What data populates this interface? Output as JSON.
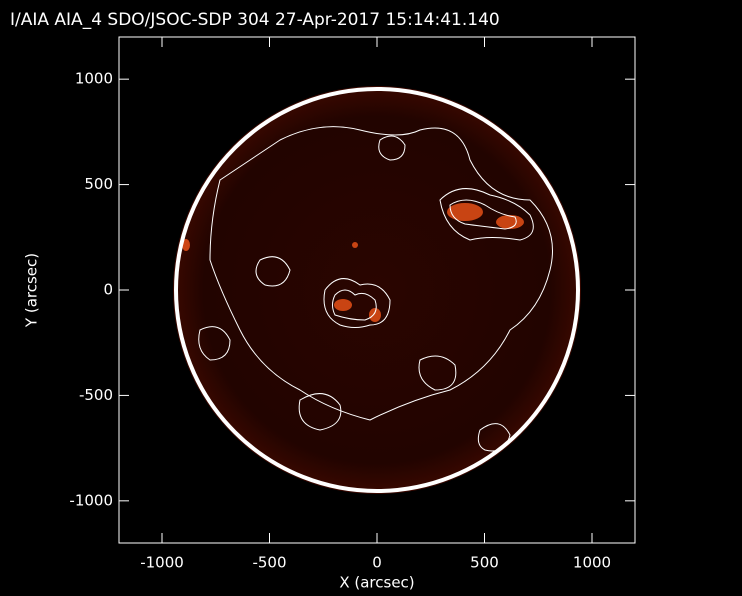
{
  "chart_data": {
    "type": "image",
    "title": "I/AIA AIA_4 SDO/JSOC-SDP 304 27-Apr-2017 15:14:41.140",
    "x_label": "X (arcsec)",
    "y_label": "Y (arcsec)",
    "xlim": [
      -1200,
      1200
    ],
    "ylim": [
      -1200,
      1200
    ],
    "xticks": [
      -1000,
      -500,
      0,
      500,
      1000
    ],
    "yticks": [
      -1000,
      -500,
      0,
      500,
      1000
    ],
    "color": "#ffffff"
  }
}
